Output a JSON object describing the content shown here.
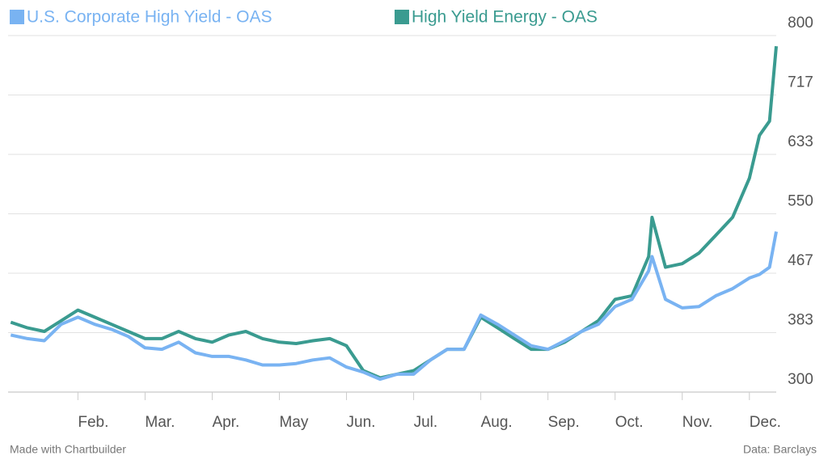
{
  "chart_data": {
    "type": "line",
    "series": [
      {
        "name": "U.S. Corporate High Yield - OAS",
        "color": "#79b3f2",
        "values": [
          380,
          375,
          372,
          395,
          405,
          395,
          388,
          378,
          362,
          360,
          370,
          355,
          350,
          350,
          345,
          338,
          338,
          340,
          345,
          348,
          335,
          328,
          318,
          325,
          325,
          345,
          360,
          360,
          408,
          395,
          380,
          365,
          360,
          372,
          385,
          395,
          420,
          430,
          470,
          490,
          430,
          418,
          420,
          435,
          445,
          460,
          465,
          475,
          525
        ]
      },
      {
        "name": "High Yield Energy - OAS",
        "color": "#3a9b90",
        "values": [
          398,
          390,
          385,
          400,
          415,
          405,
          395,
          385,
          375,
          375,
          385,
          375,
          370,
          380,
          385,
          375,
          370,
          368,
          372,
          375,
          365,
          330,
          320,
          325,
          330,
          345,
          360,
          360,
          405,
          390,
          375,
          360,
          360,
          370,
          385,
          400,
          430,
          435,
          490,
          545,
          475,
          480,
          495,
          520,
          545,
          600,
          660,
          680,
          785
        ]
      }
    ],
    "x": [
      0,
      0.25,
      0.5,
      0.75,
      1,
      1.25,
      1.5,
      1.75,
      2,
      2.25,
      2.5,
      2.75,
      3,
      3.25,
      3.5,
      3.75,
      4,
      4.25,
      4.5,
      4.75,
      5,
      5.25,
      5.5,
      5.75,
      6,
      6.25,
      6.5,
      6.75,
      7,
      7.25,
      7.5,
      7.75,
      8,
      8.25,
      8.5,
      8.75,
      9,
      9.25,
      9.5,
      9.55,
      9.75,
      10,
      10.25,
      10.5,
      10.75,
      11,
      11.15,
      11.3,
      11.4
    ],
    "xlim": [
      -0.04,
      11.4
    ],
    "xticks": [
      {
        "value": 1,
        "label": "Feb."
      },
      {
        "value": 2,
        "label": "Mar."
      },
      {
        "value": 3,
        "label": "Apr."
      },
      {
        "value": 4,
        "label": "May"
      },
      {
        "value": 5,
        "label": "Jun."
      },
      {
        "value": 6,
        "label": "Jul."
      },
      {
        "value": 7,
        "label": "Aug."
      },
      {
        "value": 8,
        "label": "Sep."
      },
      {
        "value": 9,
        "label": "Oct."
      },
      {
        "value": 10,
        "label": "Nov."
      },
      {
        "value": 11,
        "label": "Dec."
      }
    ],
    "ylim": [
      300,
      800
    ],
    "yticks": [
      300,
      {
        "value": 383.33,
        "label": "383"
      },
      {
        "value": 466.67,
        "label": "467"
      },
      550,
      {
        "value": 633.33,
        "label": "633"
      },
      {
        "value": 716.67,
        "label": "717"
      },
      800
    ],
    "grid": true,
    "source_left": "Made with Chartbuilder",
    "source_right": "Data: Barclays"
  }
}
